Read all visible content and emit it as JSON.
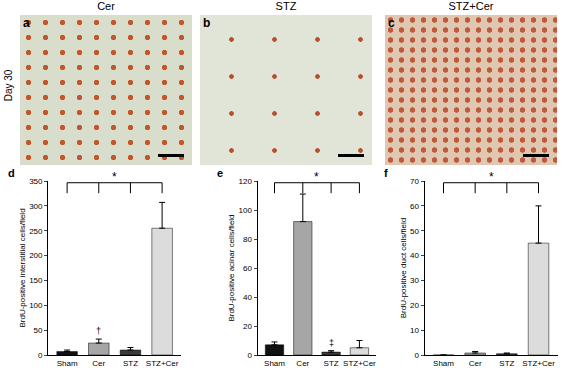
{
  "panels": {
    "row_label": "Day 30",
    "images": [
      {
        "label": "a",
        "title": "Cer"
      },
      {
        "label": "b",
        "title": "STZ"
      },
      {
        "label": "c",
        "title": "STZ+Cer"
      }
    ]
  },
  "chart_data": [
    {
      "type": "bar",
      "title": "d",
      "y_label": "BrdU-positive interstitial cells/field",
      "categories": [
        "Sham",
        "Cer",
        "STZ",
        "STZ+Cer"
      ],
      "values": [
        7,
        24,
        10,
        255
      ],
      "errors": [
        3,
        8,
        5,
        52
      ],
      "colors": [
        "#111111",
        "#a6a6a6",
        "#3a3a3a",
        "#dcdcdc"
      ],
      "ylim": [
        0,
        350
      ],
      "yticks": [
        0,
        50,
        100,
        150,
        200,
        250,
        300,
        350
      ],
      "grid": false,
      "significance": {
        "label": "*",
        "from": "STZ+Cer",
        "to": [
          "Sham",
          "Cer",
          "STZ"
        ]
      },
      "annotations": [
        {
          "text": "†",
          "category": "Cer"
        }
      ]
    },
    {
      "type": "bar",
      "title": "e",
      "y_label": "BrdU-positive acinar cells/field",
      "categories": [
        "Sham",
        "Cer",
        "STZ",
        "STZ+Cer"
      ],
      "values": [
        7,
        92,
        2,
        5
      ],
      "errors": [
        2,
        19,
        1,
        5
      ],
      "colors": [
        "#111111",
        "#a6a6a6",
        "#3a3a3a",
        "#dcdcdc"
      ],
      "ylim": [
        0,
        120
      ],
      "yticks": [
        0,
        20,
        40,
        60,
        80,
        100,
        120
      ],
      "grid": false,
      "significance": {
        "label": "*",
        "from": "Cer",
        "to": [
          "Sham",
          "STZ",
          "STZ+Cer"
        ]
      },
      "annotations": [
        {
          "text": "‡",
          "category": "STZ"
        }
      ]
    },
    {
      "type": "bar",
      "title": "f",
      "y_label": "BrdU-positive duct cells/field",
      "categories": [
        "Sham",
        "Cer",
        "STZ",
        "STZ+Cer"
      ],
      "values": [
        0,
        0.8,
        0.5,
        45
      ],
      "errors": [
        0,
        0.6,
        0.3,
        15
      ],
      "colors": [
        "#111111",
        "#a6a6a6",
        "#3a3a3a",
        "#dcdcdc"
      ],
      "ylim": [
        0,
        70
      ],
      "yticks": [
        0,
        10,
        20,
        30,
        40,
        50,
        60,
        70
      ],
      "grid": false,
      "significance": {
        "label": "*",
        "from": "STZ+Cer",
        "to": [
          "Sham",
          "Cer",
          "STZ"
        ]
      },
      "annotations": []
    }
  ]
}
